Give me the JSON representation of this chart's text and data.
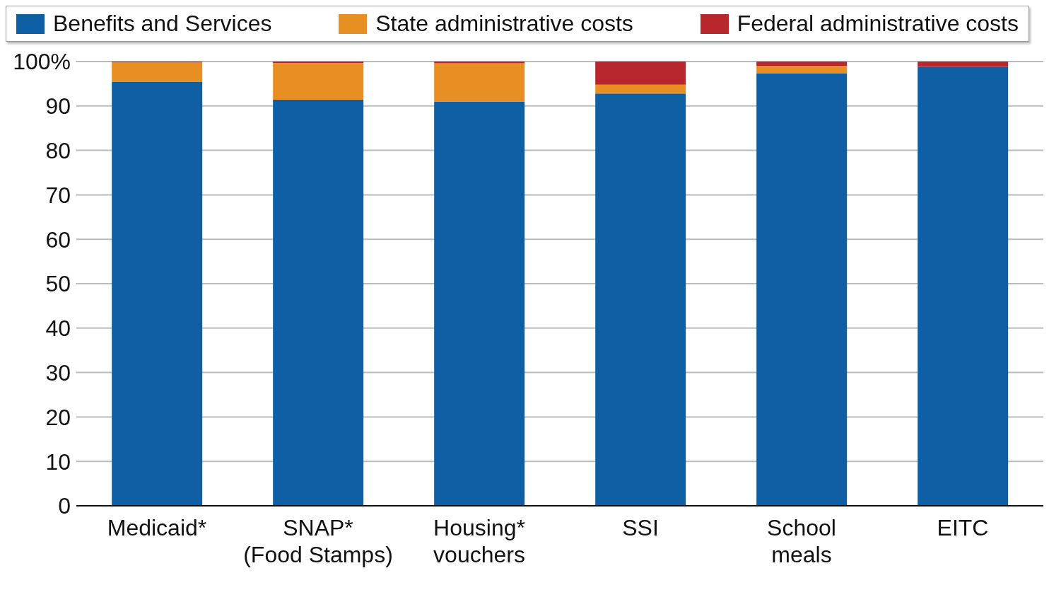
{
  "chart_data": {
    "type": "bar",
    "stacked": true,
    "categories": [
      "Medicaid*",
      "SNAP*\n(Food Stamps)",
      "Housing*\nvouchers",
      "SSI",
      "School\nmeals",
      "EITC"
    ],
    "series": [
      {
        "name": "Benefits and Services",
        "color": "#0e5fa3",
        "values": [
          95.4,
          91.4,
          91.0,
          92.8,
          97.3,
          98.8
        ]
      },
      {
        "name": "State administrative costs",
        "color": "#e88f24",
        "values": [
          4.4,
          8.3,
          8.6,
          2.0,
          1.7,
          0
        ]
      },
      {
        "name": "Federal administrative costs",
        "color": "#b8262e",
        "values": [
          0.2,
          0.3,
          0.4,
          5.2,
          1.0,
          1.2
        ]
      }
    ],
    "ylim": [
      0,
      100
    ],
    "yticks": [
      0,
      10,
      20,
      30,
      40,
      50,
      60,
      70,
      80,
      90,
      {
        "value": 100,
        "label": "100%"
      }
    ],
    "grid": "y",
    "legend": "top"
  }
}
